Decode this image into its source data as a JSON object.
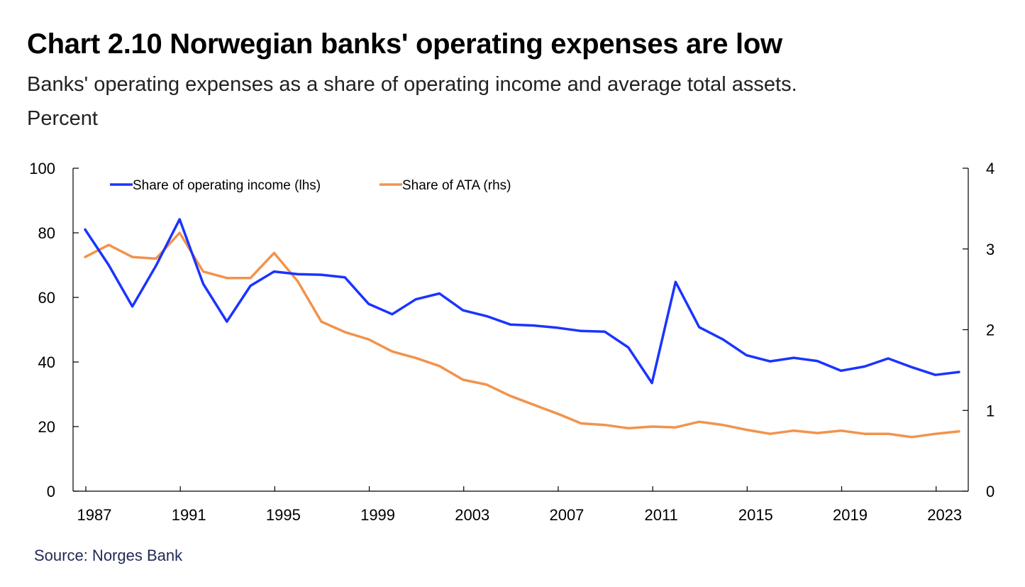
{
  "title": "Chart 2.10 Norwegian banks' operating expenses are low",
  "subtitle_line1": "Banks' operating expenses as a share of operating income and average total assets.",
  "subtitle_line2": "Percent",
  "source": "Source: Norges Bank",
  "colors": {
    "lhs": "#1a34ff",
    "rhs": "#f2934c",
    "axis": "#000000"
  },
  "chart_data": {
    "type": "line",
    "title": "Chart 2.10 Norwegian banks' operating expenses are low",
    "x": [
      1987,
      1988,
      1989,
      1990,
      1991,
      1992,
      1993,
      1994,
      1995,
      1996,
      1997,
      1998,
      1999,
      2000,
      2001,
      2002,
      2003,
      2004,
      2005,
      2006,
      2007,
      2008,
      2009,
      2010,
      2011,
      2012,
      2013,
      2014,
      2015,
      2016,
      2017,
      2018,
      2019,
      2020,
      2021,
      2022,
      2023,
      2024
    ],
    "xticks": [
      "1987",
      "1991",
      "1995",
      "1999",
      "2003",
      "2007",
      "2011",
      "2015",
      "2019",
      "2023"
    ],
    "xtick_values": [
      1987,
      1991,
      1995,
      1999,
      2003,
      2007,
      2011,
      2015,
      2019,
      2023
    ],
    "xlim": [
      1987,
      2024
    ],
    "ylim_left": [
      0,
      100
    ],
    "yticks_left": [
      "0",
      "20",
      "40",
      "60",
      "80",
      "100"
    ],
    "ytick_values_left": [
      0,
      20,
      40,
      60,
      80,
      100
    ],
    "ylim_right": [
      0,
      4
    ],
    "yticks_right": [
      "0",
      "1",
      "2",
      "3",
      "4"
    ],
    "ytick_values_right": [
      0,
      1,
      2,
      3,
      4
    ],
    "legend_position": "top-left",
    "series": [
      {
        "name": "Share of operating income (lhs)",
        "axis": "left",
        "values": [
          81,
          70,
          57.2,
          69.8,
          84.2,
          64.2,
          52.5,
          63.6,
          68,
          67.2,
          67,
          66.2,
          58,
          54.8,
          59.4,
          61.2,
          56,
          54.2,
          51.6,
          51.3,
          50.6,
          49.6,
          49.4,
          44.5,
          33.5,
          64.8,
          50.8,
          47,
          42.1,
          40.2,
          41.3,
          40.3,
          37.3,
          38.6,
          41.1,
          38.4,
          36,
          36.9
        ]
      },
      {
        "name": "Share of ATA (rhs)",
        "axis": "right",
        "values": [
          2.9,
          3.05,
          2.9,
          2.88,
          3.2,
          2.72,
          2.64,
          2.64,
          2.95,
          2.6,
          2.1,
          1.97,
          1.88,
          1.73,
          1.65,
          1.55,
          1.38,
          1.32,
          1.18,
          1.07,
          0.96,
          0.84,
          0.82,
          0.78,
          0.8,
          0.79,
          0.86,
          0.82,
          0.76,
          0.71,
          0.75,
          0.72,
          0.75,
          0.71,
          0.71,
          0.67,
          0.71,
          0.74
        ]
      }
    ]
  }
}
